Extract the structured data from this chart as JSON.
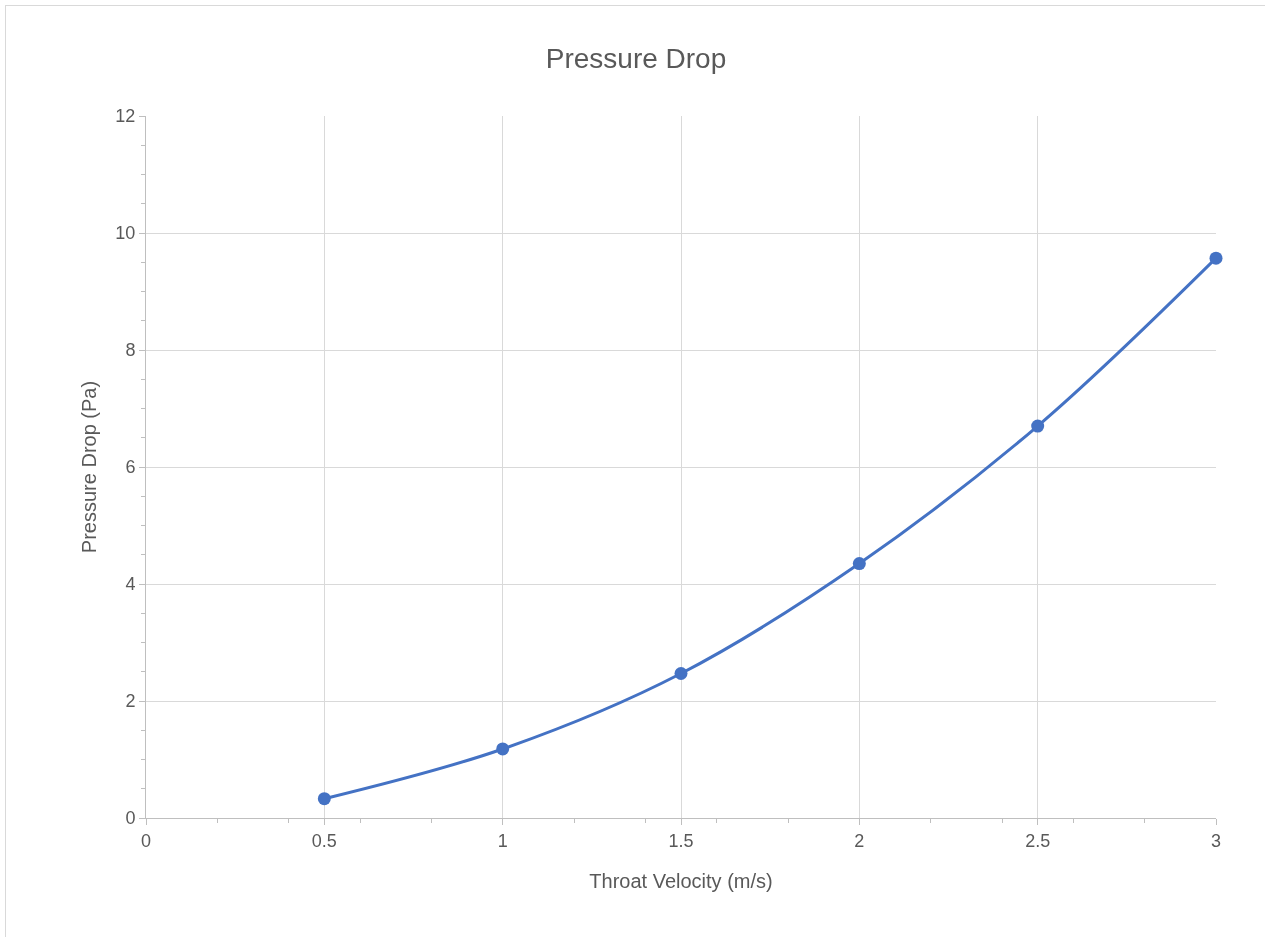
{
  "chart_data": {
    "type": "line",
    "title": "Pressure Drop",
    "xlabel": "Throat Velocity (m/s)",
    "ylabel": "Pressure Drop (Pa)",
    "x": [
      0.5,
      1,
      1.5,
      2,
      2.5,
      3
    ],
    "series": [
      {
        "color": "#4472c4",
        "values": [
          0.33,
          1.18,
          2.47,
          4.35,
          6.7,
          9.57
        ]
      }
    ],
    "xlim": [
      0,
      3
    ],
    "xticks": [
      0,
      0.5,
      1,
      1.5,
      2,
      2.5,
      3
    ],
    "ylim": [
      0,
      12
    ],
    "yticks": [
      0,
      2,
      4,
      6,
      8,
      10,
      12
    ],
    "grid": true,
    "marker": "circle",
    "line_style": "solid"
  }
}
